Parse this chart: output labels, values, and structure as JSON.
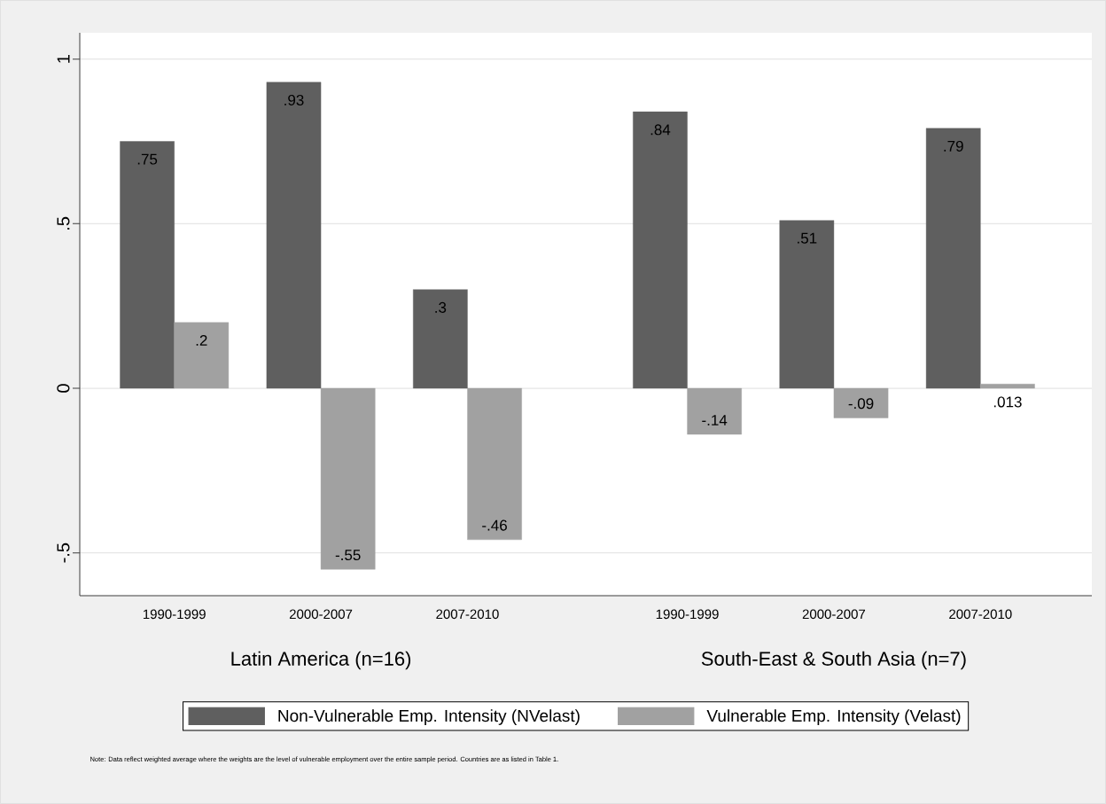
{
  "chart_data": {
    "type": "bar",
    "categories": [
      "1990-1999",
      "2000-2007",
      "2007-2010",
      "1990-1999",
      "2000-2007",
      "2007-2010"
    ],
    "series": [
      {
        "name": "Non-Vulnerable Emp. Intensity (NVelast)",
        "color": "#5f5f5f",
        "values": [
          0.75,
          0.93,
          0.3,
          0.84,
          0.51,
          0.79
        ],
        "value_labels": [
          ".75",
          ".93",
          ".3",
          ".84",
          ".51",
          ".79"
        ]
      },
      {
        "name": "Vulnerable Emp. Intensity (Velast)",
        "color": "#a1a1a1",
        "values": [
          0.2,
          -0.55,
          -0.46,
          -0.14,
          -0.09,
          0.013
        ],
        "value_labels": [
          ".2",
          "-.55",
          "-.46",
          "-.14",
          "-.09",
          ".013"
        ]
      }
    ],
    "ylim": [
      -0.63,
      1.08
    ],
    "yticks": [
      {
        "value": -0.5,
        "label": "-.5"
      },
      0,
      {
        "value": 0.5,
        "label": ".5"
      },
      1
    ],
    "grid": "y",
    "legend": "bottom",
    "annotations": [
      "Latin America (n=16)",
      "South-East & South Asia (n=7)",
      "Note: Data reflect weighted average where the weights are the level of vulnerable employment over the entire sample period. Countries are as listed in Table 1."
    ]
  }
}
